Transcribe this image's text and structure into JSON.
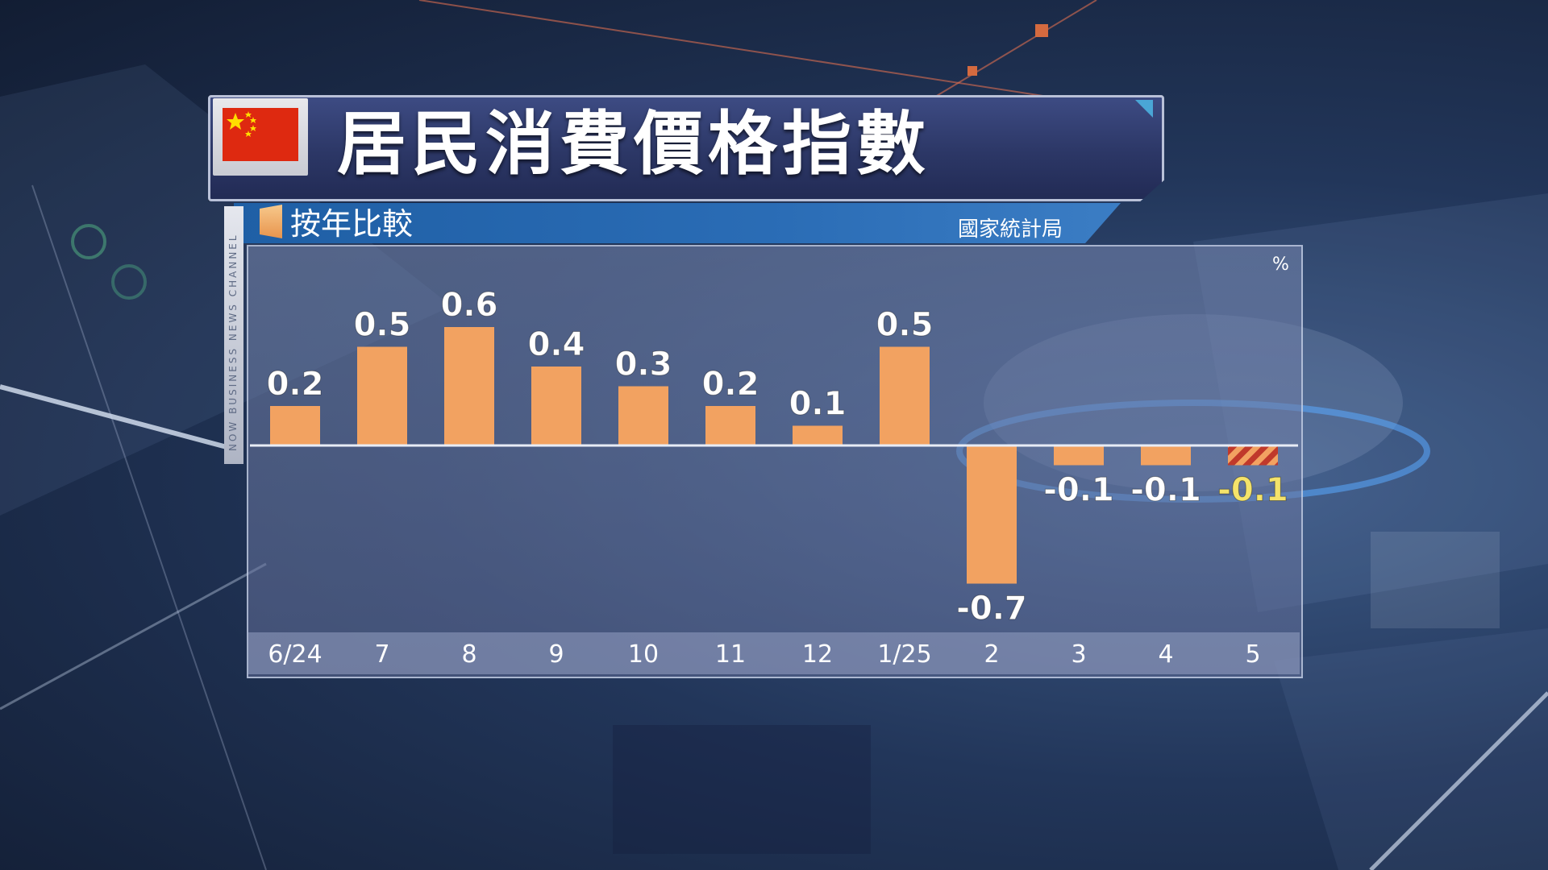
{
  "header": {
    "title": "居民消費價格指數",
    "subtitle": "按年比較",
    "source": "國家統計局",
    "unit": "%",
    "channel_label": "NOW BUSINESS NEWS CHANNEL"
  },
  "colors": {
    "bar": "#f2a261",
    "highlight_label": "#f4e36b",
    "hatch_a": "#c0392b",
    "hatch_b": "#f2a261"
  },
  "chart_data": {
    "type": "bar",
    "title": "居民消費價格指數",
    "subtitle": "按年比較",
    "ylabel": "%",
    "categories": [
      "6/24",
      "7",
      "8",
      "9",
      "10",
      "11",
      "12",
      "1/25",
      "2",
      "3",
      "4",
      "5"
    ],
    "values": [
      0.2,
      0.5,
      0.6,
      0.4,
      0.3,
      0.2,
      0.1,
      0.5,
      -0.7,
      -0.1,
      -0.1,
      -0.1
    ],
    "labels": [
      "0.2",
      "0.5",
      "0.6",
      "0.4",
      "0.3",
      "0.2",
      "0.1",
      "0.5",
      "-0.7",
      "-0.1",
      "-0.1",
      "-0.1"
    ],
    "highlight_index": 11,
    "ylim": [
      -0.8,
      0.7
    ],
    "grid": false,
    "legend": "none"
  }
}
